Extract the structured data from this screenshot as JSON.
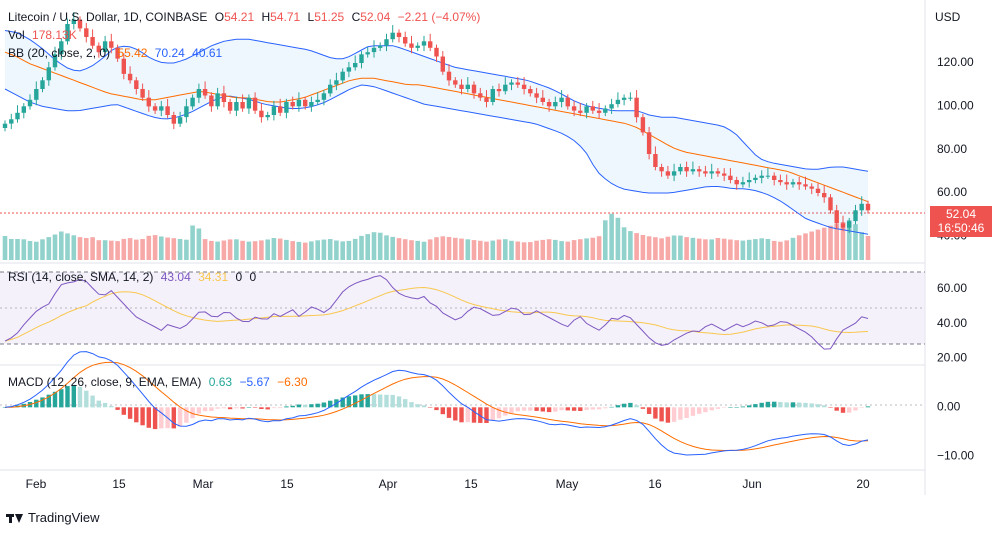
{
  "header": {
    "symbol": "Litecoin / U.S. Dollar, 1D, COINBASE",
    "open_label": "O",
    "open": "54.21",
    "high_label": "H",
    "high": "54.71",
    "low_label": "L",
    "low": "51.25",
    "close_label": "C",
    "close": "52.04",
    "change": "−2.21 (−4.07%)"
  },
  "currency": "USD",
  "volume_legend": {
    "label": "Vol",
    "value": "178.13K"
  },
  "bb_legend": {
    "label": "BB (20, close, 2, 0)",
    "basis": "55.42",
    "upper": "70.24",
    "lower": "40.61"
  },
  "rsi_legend": {
    "label": "RSI (14, close, SMA, 14, 2)",
    "rsi": "43.04",
    "ma": "34.31",
    "extra1": "0",
    "extra2": "0"
  },
  "macd_legend": {
    "label": "MACD (12, 26, close, 9, EMA, EMA)",
    "hist": "0.63",
    "macd": "−5.67",
    "signal": "−6.30"
  },
  "last_price": {
    "price": "52.04",
    "countdown": "16:50:46"
  },
  "brand": "TradingView",
  "colors": {
    "up": "#26a69a",
    "down": "#ef5350",
    "bb_band": "#2962ff",
    "bb_basis": "#ff6d00",
    "rsi": "#7e57c2",
    "rsi_ma": "#f9c74f"
  },
  "chart_data": [
    {
      "type": "candlestick",
      "pane": "price",
      "y_axis_ticks": [
        "120.00",
        "100.00",
        "80.00",
        "60.00",
        "40.00"
      ],
      "ylim": [
        30,
        138
      ],
      "x_axis_ticks": [
        "Feb",
        "15",
        "Mar",
        "15",
        "Apr",
        "15",
        "May",
        "16",
        "Jun",
        "20"
      ],
      "close_series_approx": [
        92,
        94,
        97,
        100,
        103,
        108,
        112,
        118,
        124,
        130,
        138,
        140,
        136,
        132,
        128,
        125,
        130,
        127,
        122,
        115,
        112,
        108,
        104,
        100,
        98,
        100,
        96,
        92,
        95,
        100,
        104,
        108,
        105,
        100,
        106,
        102,
        98,
        102,
        99,
        104,
        98,
        95,
        96,
        100,
        97,
        102,
        100,
        103,
        100,
        102,
        103,
        106,
        110,
        112,
        116,
        118,
        120,
        124,
        125,
        127,
        128,
        131,
        134,
        132,
        129,
        127,
        128,
        130,
        127,
        123,
        116,
        112,
        110,
        108,
        110,
        106,
        104,
        102,
        108,
        107,
        110,
        111,
        110,
        108,
        106,
        104,
        102,
        100,
        102,
        104,
        100,
        98,
        97,
        100,
        98,
        97,
        99,
        101,
        103,
        104,
        104,
        95,
        88,
        78,
        72,
        70,
        68,
        70,
        72,
        70,
        71,
        70,
        69,
        70,
        69,
        68,
        66,
        64,
        65,
        66,
        67,
        68,
        68,
        66,
        65,
        64,
        65,
        64,
        63,
        62,
        60,
        58,
        52,
        46,
        44,
        47,
        52,
        55,
        52
      ],
      "bb_basis_approx": [
        125,
        123,
        120,
        118,
        116,
        114,
        112,
        110,
        108,
        106,
        105,
        104,
        103,
        103,
        104,
        105,
        106,
        107,
        106,
        105,
        104,
        104,
        103,
        102,
        102,
        103,
        104,
        106,
        108,
        110,
        112,
        113,
        113,
        112,
        111,
        110,
        110,
        109,
        108,
        107,
        106,
        105,
        104,
        103,
        102,
        101,
        100,
        99,
        98,
        97,
        96,
        95,
        94,
        93,
        92,
        90,
        87,
        84,
        81,
        79,
        78,
        77,
        76,
        75,
        74,
        73,
        72,
        71,
        70,
        68,
        66,
        64,
        62,
        60,
        58,
        56
      ],
      "bb_upper_approx": [
        135,
        134,
        131,
        127,
        122,
        118,
        116,
        118,
        122,
        127,
        128,
        126,
        122,
        120,
        120,
        122,
        125,
        128,
        130,
        131,
        131,
        130,
        129,
        128,
        127,
        126,
        124,
        122,
        122,
        125,
        128,
        128,
        128,
        126,
        124,
        122,
        120,
        118,
        117,
        116,
        115,
        114,
        113,
        112,
        110,
        108,
        105,
        102,
        100,
        99,
        98,
        98,
        98,
        96,
        95,
        95,
        94,
        93,
        92,
        91,
        88,
        82,
        76,
        74,
        73,
        72,
        71,
        71,
        72,
        72,
        71,
        70
      ],
      "bb_lower_approx": [
        108,
        105,
        102,
        100,
        99,
        98,
        98,
        99,
        100,
        101,
        99,
        97,
        95,
        94,
        95,
        97,
        100,
        103,
        105,
        104,
        103,
        101,
        100,
        99,
        99,
        100,
        102,
        105,
        108,
        110,
        109,
        107,
        105,
        103,
        101,
        100,
        99,
        98,
        97,
        96,
        95,
        94,
        93,
        92,
        90,
        88,
        85,
        80,
        70,
        65,
        62,
        61,
        60,
        60,
        60,
        61,
        62,
        63,
        63,
        62,
        62,
        61,
        59,
        56,
        52,
        48,
        46,
        44,
        43,
        42,
        41
      ]
    },
    {
      "type": "bar",
      "pane": "volume",
      "values_relative_approx": [
        0.5,
        0.42,
        0.45,
        0.4,
        0.38,
        0.45,
        0.5,
        0.6,
        0.55,
        0.5,
        0.45,
        0.48,
        0.4,
        0.42,
        0.38,
        0.44,
        0.46,
        0.4,
        0.5,
        0.52,
        0.48,
        0.46,
        0.44,
        0.42,
        0.85,
        0.45,
        0.4,
        0.38,
        0.42,
        0.44,
        0.4,
        0.38,
        0.4,
        0.42,
        0.46,
        0.44,
        0.4,
        0.38,
        0.36,
        0.4,
        0.42,
        0.44,
        0.4,
        0.38,
        0.42,
        0.5,
        0.55,
        0.6,
        0.52,
        0.48,
        0.45,
        0.42,
        0.4,
        0.38,
        0.45,
        0.5,
        0.48,
        0.46,
        0.44,
        0.42,
        0.4,
        0.38,
        0.42,
        0.44,
        0.4,
        0.38,
        0.36,
        0.4,
        0.42,
        0.44,
        0.4,
        0.38,
        0.42,
        0.44,
        0.46,
        0.48,
        0.9,
        1.0,
        0.7,
        0.6,
        0.55,
        0.5,
        0.48,
        0.45,
        0.5,
        0.52,
        0.48,
        0.46,
        0.44,
        0.42,
        0.46,
        0.44,
        0.42,
        0.4,
        0.42,
        0.44,
        0.46,
        0.4,
        0.38,
        0.42,
        0.5,
        0.55,
        0.6,
        0.65,
        0.7,
        0.75,
        0.8,
        0.85,
        0.6,
        0.5
      ]
    },
    {
      "type": "line",
      "pane": "rsi",
      "y_axis_ticks": [
        "60.00",
        "40.00",
        "20.00"
      ],
      "ylim": [
        18,
        72
      ],
      "bands": [
        70,
        50,
        30
      ],
      "rsi_approx": [
        30,
        32,
        35,
        40,
        44,
        48,
        50,
        52,
        60,
        64,
        63,
        65,
        66,
        62,
        58,
        55,
        60,
        56,
        52,
        48,
        44,
        42,
        40,
        38,
        36,
        40,
        38,
        37,
        40,
        44,
        48,
        46,
        43,
        45,
        48,
        44,
        42,
        40,
        44,
        43,
        42,
        46,
        44,
        46,
        48,
        44,
        47,
        50,
        48,
        46,
        50,
        55,
        60,
        62,
        64,
        65,
        66,
        68,
        67,
        62,
        58,
        56,
        55,
        54,
        56,
        52,
        50,
        46,
        44,
        42,
        44,
        48,
        50,
        48,
        46,
        44,
        46,
        48,
        50,
        46,
        44,
        48,
        46,
        44,
        42,
        40,
        38,
        42,
        44,
        40,
        38,
        36,
        40,
        44,
        42,
        46,
        42,
        38,
        34,
        30,
        28,
        27,
        30,
        32,
        34,
        36,
        35,
        38,
        40,
        38,
        36,
        38,
        40,
        38,
        40,
        42,
        40,
        38,
        40,
        42,
        40,
        38,
        36,
        34,
        30,
        26,
        24,
        30,
        36,
        38,
        40,
        44,
        43
      ]
    },
    {
      "type": "bar+line",
      "pane": "macd",
      "y_axis_ticks": [
        "0.00",
        "−10.00"
      ],
      "ylim": [
        -12,
        6
      ]
    }
  ]
}
